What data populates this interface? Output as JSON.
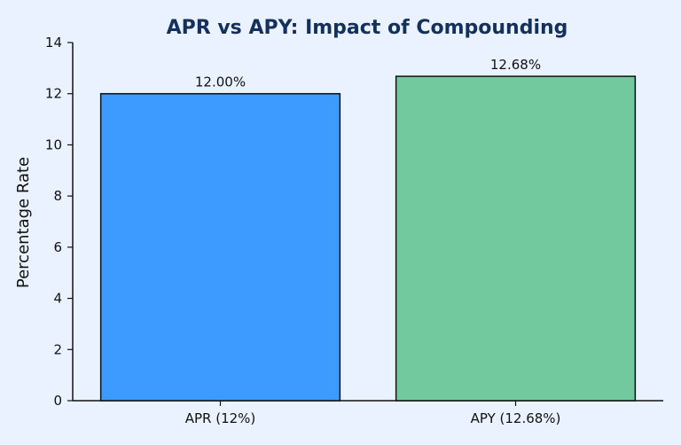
{
  "chart_data": {
    "type": "bar",
    "title": "APR vs APY: Impact of Compounding",
    "xlabel": "",
    "ylabel": "Percentage Rate",
    "categories": [
      "APR (12%)",
      "APY (12.68%)"
    ],
    "values": [
      12.0,
      12.68
    ],
    "value_labels": [
      "12.00%",
      "12.68%"
    ],
    "ylim": [
      0,
      14
    ],
    "yticks": [
      0,
      2,
      4,
      6,
      8,
      10,
      12,
      14
    ],
    "grid": false,
    "legend": "none",
    "colors": {
      "bars": [
        "#3d9bff",
        "#72c99d"
      ],
      "edge": "#111111",
      "title": "#13315c",
      "background": "#eaf2ff"
    }
  }
}
